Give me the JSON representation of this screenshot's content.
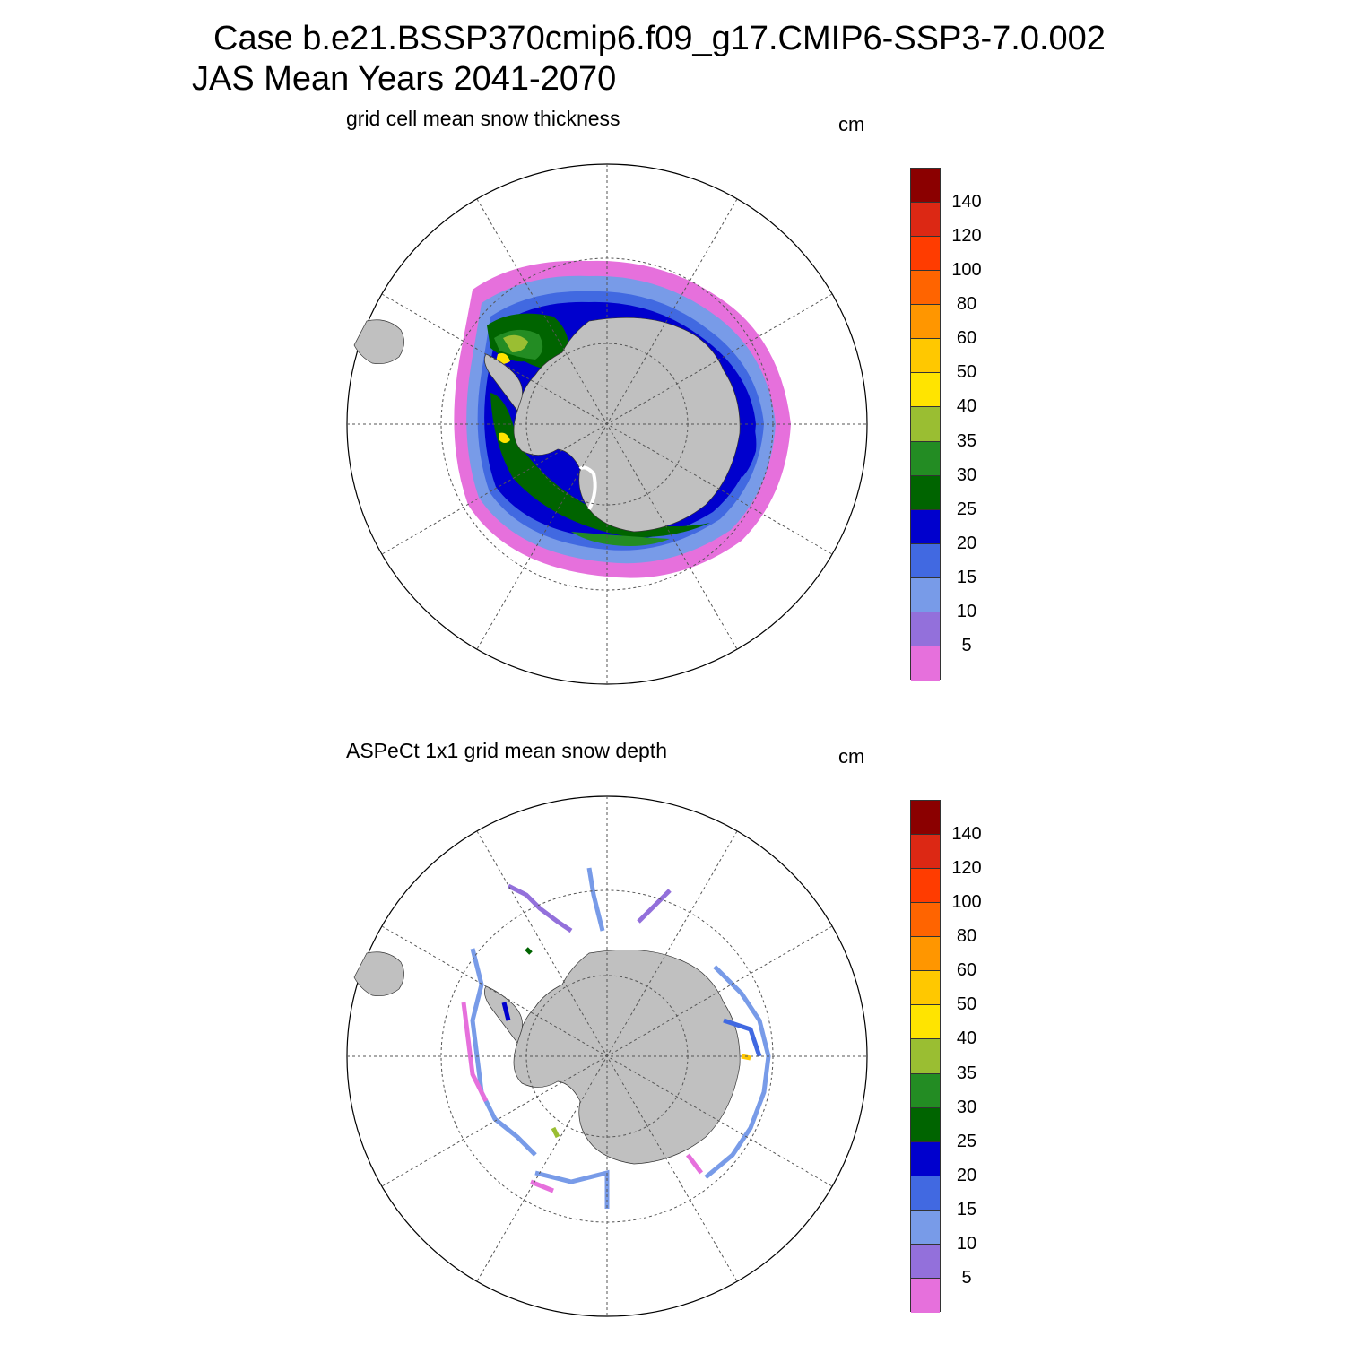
{
  "title_line1": "Case b.e21.BSSP370cmip6.f09_g17.CMIP6-SSP3-7.0.002",
  "title_line2": "JAS Mean   Years 2041-2070",
  "panels": [
    {
      "subtitle": "grid cell mean snow thickness",
      "units": "cm"
    },
    {
      "subtitle": "ASPeCt 1x1 grid mean snow depth",
      "units": "cm"
    }
  ],
  "colorbar": {
    "labels": [
      "140",
      "120",
      "100",
      "80",
      "60",
      "50",
      "40",
      "35",
      "30",
      "25",
      "20",
      "15",
      "10",
      "5"
    ],
    "colors": [
      "#8b0000",
      "#dc2814",
      "#ff3c00",
      "#ff6400",
      "#ff9600",
      "#ffc800",
      "#ffe400",
      "#9abe32",
      "#238c23",
      "#006400",
      "#0000cd",
      "#4169e1",
      "#789be8",
      "#9370db",
      "#e670dc"
    ]
  },
  "colors": {
    "land": "#c0c0c0",
    "ice_edge": "#ffffff"
  }
}
